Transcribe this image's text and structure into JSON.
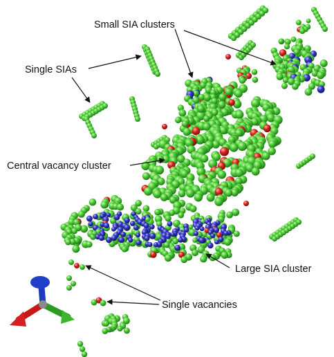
{
  "labels": {
    "small_sia": "Small SIA clusters",
    "single_sias": "Single SIAs",
    "central_vacancy": "Central vacancy cluster",
    "large_sia": "Large SIA cluster",
    "single_vacancies": "Single vacancies"
  },
  "legend_colors": {
    "sia_atom": "#3fbf2f",
    "vacancy_atom": "#c8201a",
    "interior_atom": "#2d2fb0"
  },
  "axes_triad": {
    "x_color": "#d32020",
    "y_color": "#3fb52f",
    "z_color": "#1f3fc8"
  }
}
